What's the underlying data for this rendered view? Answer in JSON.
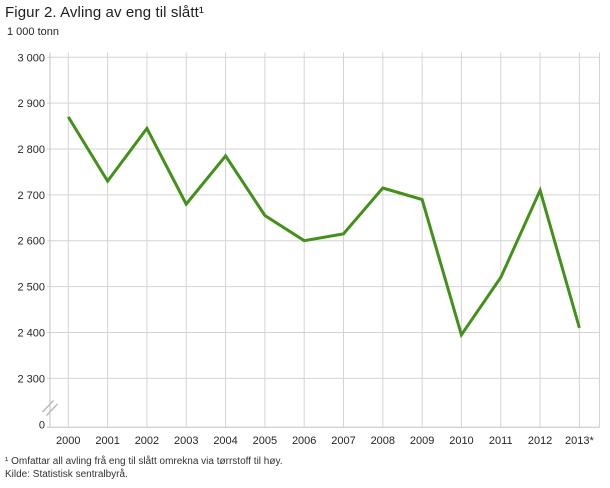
{
  "header": {
    "title": "Figur 2. Avling av eng til slått¹",
    "unit_label": "1 000 tonn"
  },
  "footer": {
    "footnote": "¹ Omfattar all avling frå eng til slått omrekna via tørrstoff til høy.",
    "source": "Kilde: Statistisk sentralbyrå."
  },
  "chart_data": {
    "type": "line",
    "title": "Figur 2. Avling av eng til slått¹",
    "ylabel": "1 000 tonn",
    "xlabel": "",
    "categories": [
      "2000",
      "2001",
      "2002",
      "2003",
      "2004",
      "2005",
      "2006",
      "2007",
      "2008",
      "2009",
      "2010",
      "2011",
      "2012",
      "2013*"
    ],
    "values": [
      2870,
      2730,
      2845,
      2680,
      2785,
      2655,
      2600,
      2615,
      2715,
      2690,
      2395,
      2520,
      2710,
      2410
    ],
    "y_ticks": [
      3000,
      2900,
      2800,
      2700,
      2600,
      2500,
      2400,
      2300
    ],
    "y_tick_labels": [
      "3 000",
      "2 900",
      "2 800",
      "2 700",
      "2 600",
      "2 500",
      "2 400",
      "2 300"
    ],
    "y_zero_label": "0",
    "axis_break": true,
    "ylim": [
      2300,
      3000
    ],
    "grid": true,
    "legend": "none",
    "colors": {
      "line": "#43911a",
      "grid": "#d4d4d8",
      "axis": "#c2c2c6",
      "break": "#b8b8bc",
      "text": "#262626"
    }
  }
}
